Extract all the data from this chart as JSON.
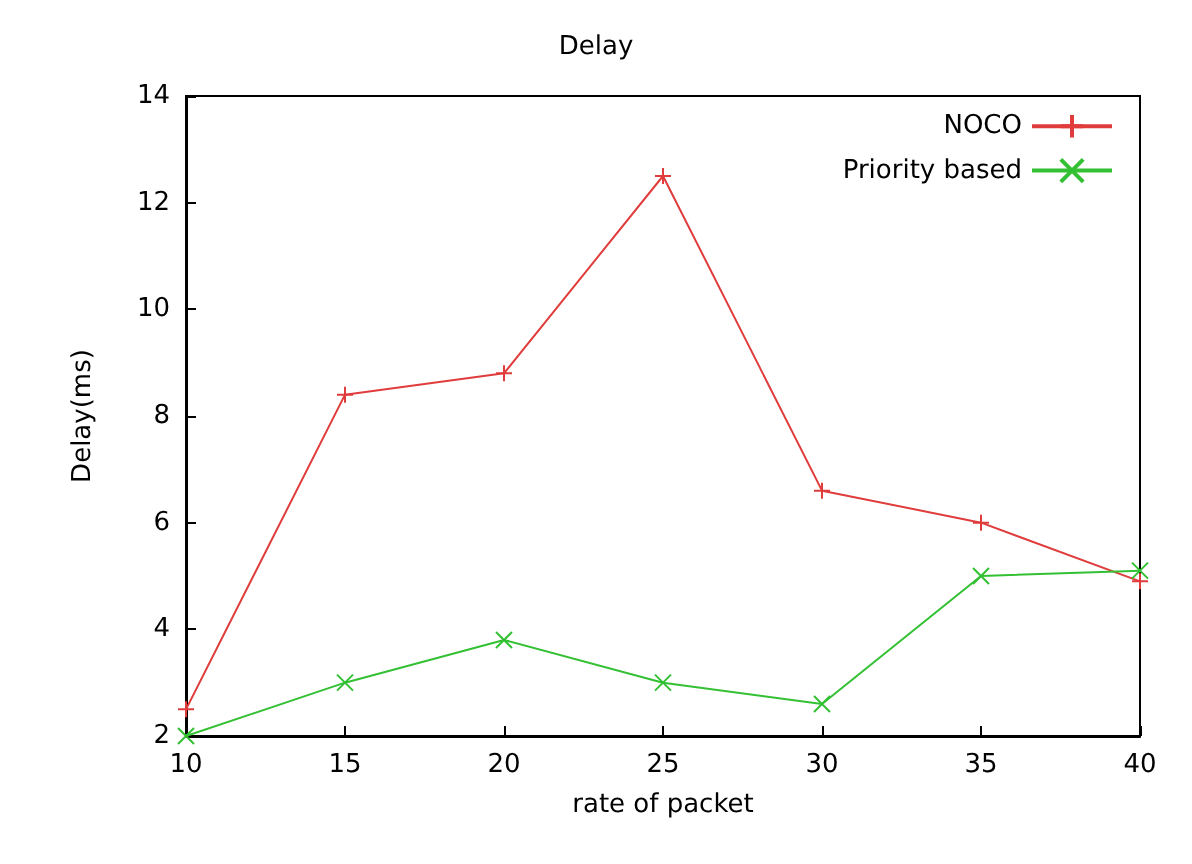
{
  "chart_data": {
    "type": "line",
    "title": "Delay",
    "xlabel": "rate of packet",
    "ylabel": "Delay(ms)",
    "x": [
      10,
      15,
      20,
      25,
      30,
      35,
      40
    ],
    "series": [
      {
        "name": "NOCO",
        "color": "#e03c3c",
        "marker": "plus",
        "values": [
          2.5,
          8.4,
          8.8,
          12.5,
          6.6,
          6.0,
          4.9
        ]
      },
      {
        "name": "Priority based",
        "color": "#33c033",
        "marker": "cross",
        "values": [
          2.0,
          3.0,
          3.8,
          3.0,
          2.6,
          5.0,
          5.1
        ]
      }
    ],
    "xlim": [
      10,
      40
    ],
    "xticks": [
      10,
      15,
      20,
      25,
      30,
      35,
      40
    ],
    "ylim": [
      2,
      14
    ],
    "yticks": [
      2,
      4,
      6,
      8,
      10,
      12,
      14
    ],
    "grid": false,
    "legend": "top right",
    "line_style": "solid"
  }
}
